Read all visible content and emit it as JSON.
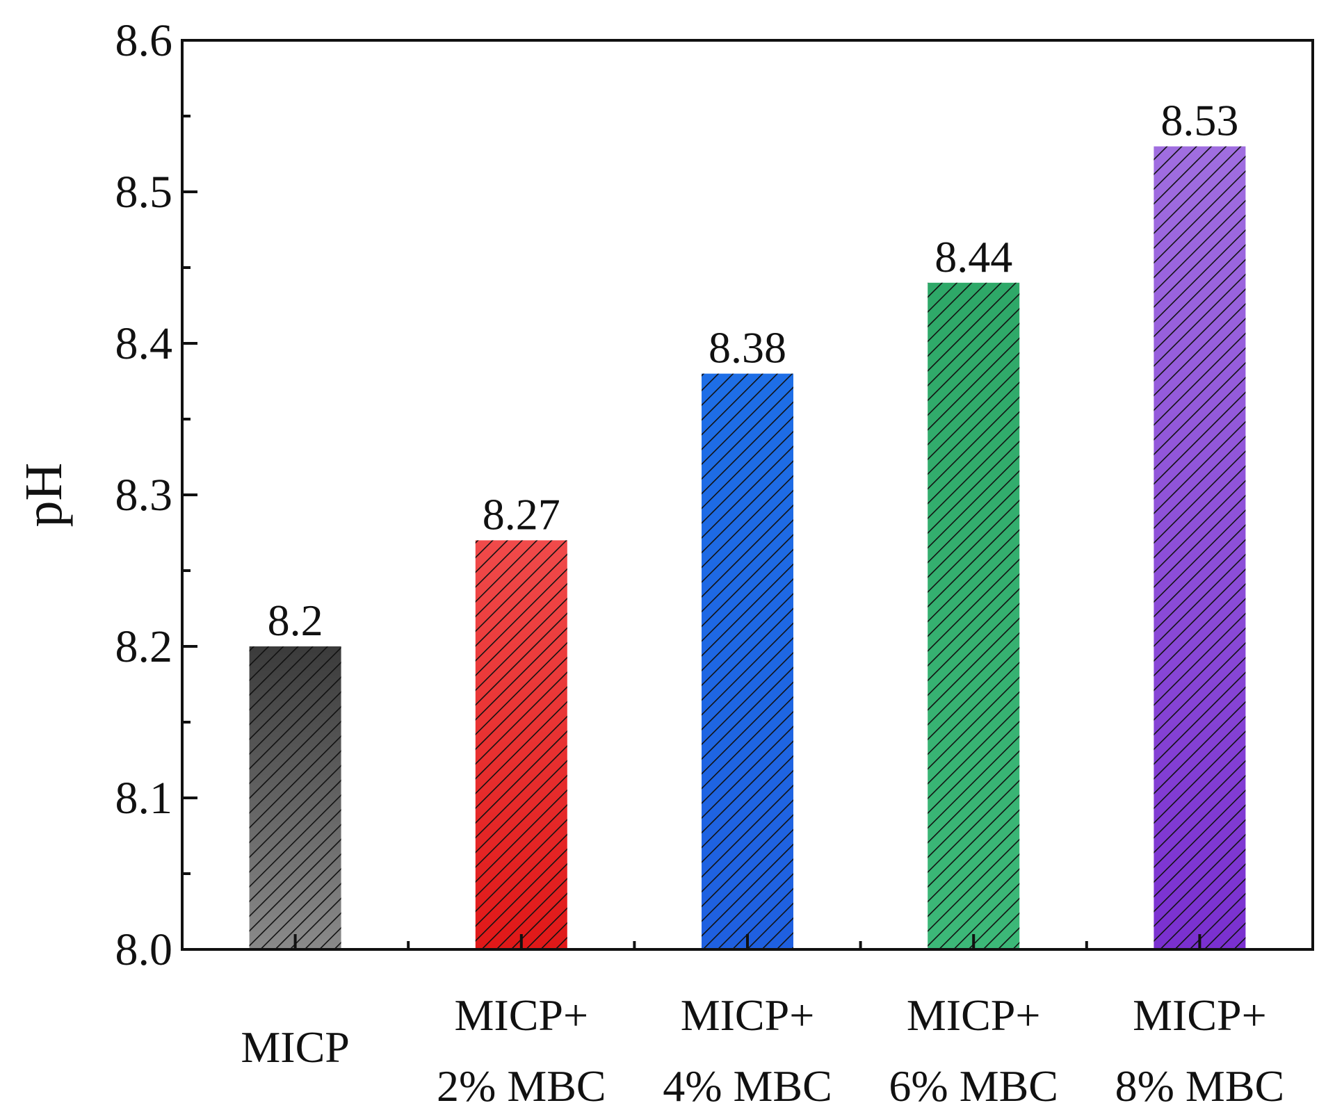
{
  "chart_data": {
    "type": "bar",
    "title": "",
    "xlabel": "",
    "ylabel": "pH",
    "ylim": [
      8.0,
      8.6
    ],
    "yticks": [
      "8.0",
      "8.1",
      "8.2",
      "8.3",
      "8.4",
      "8.5",
      "8.6"
    ],
    "grid": false,
    "categories": [
      {
        "line1": "MICP",
        "line2": ""
      },
      {
        "line1": "MICP+",
        "line2": "2% MBC"
      },
      {
        "line1": "MICP+",
        "line2": "4% MBC"
      },
      {
        "line1": "MICP+",
        "line2": "6% MBC"
      },
      {
        "line1": "MICP+",
        "line2": "8% MBC"
      }
    ],
    "values": [
      8.2,
      8.27,
      8.38,
      8.44,
      8.53
    ],
    "value_labels": [
      "8.2",
      "8.27",
      "8.38",
      "8.44",
      "8.53"
    ],
    "bar_colors": [
      {
        "top": "#3b3b3b",
        "bottom": "#8a8a8a"
      },
      {
        "top": "#f04a4a",
        "bottom": "#e01818"
      },
      {
        "top": "#1e6ee6",
        "bottom": "#1f60e0"
      },
      {
        "top": "#2ea868",
        "bottom": "#3cb878"
      },
      {
        "top": "#a06ee0",
        "bottom": "#7a30d0"
      }
    ],
    "hatch": "diagonal"
  }
}
